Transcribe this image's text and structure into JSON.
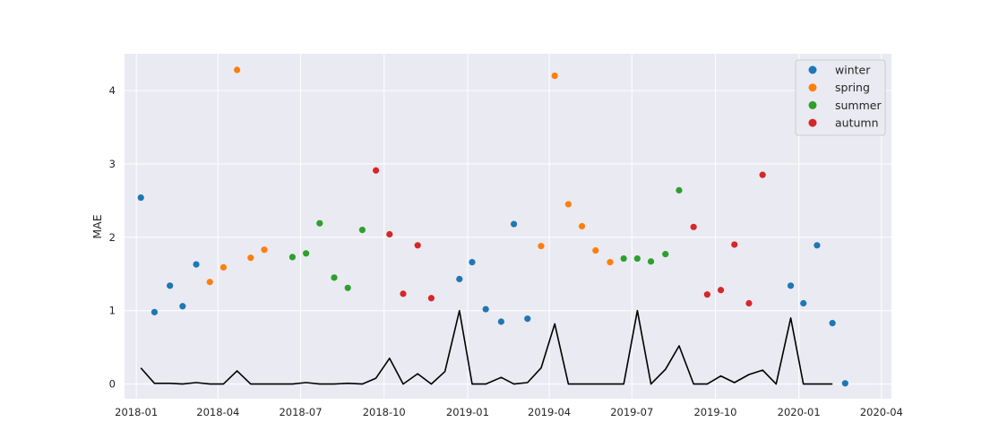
{
  "chart_data": {
    "type": "scatter",
    "xlabel": "",
    "ylabel": "MAE",
    "xlim": [
      "2017-12-19",
      "2020-04-12"
    ],
    "ylim": [
      -0.2,
      4.5
    ],
    "grid": true,
    "legend_position": "top-right",
    "background": "#eaeaf2",
    "x_ticks": [
      "2018-01",
      "2018-04",
      "2018-07",
      "2018-10",
      "2019-01",
      "2019-04",
      "2019-07",
      "2019-10",
      "2020-01",
      "2020-04"
    ],
    "y_ticks": [
      "0",
      "1",
      "2",
      "3",
      "4"
    ],
    "series": [
      {
        "name": "winter",
        "color": "#1f77b4",
        "points": [
          [
            "2018-01-06",
            2.54
          ],
          [
            "2018-01-21",
            0.98
          ],
          [
            "2018-02-07",
            1.34
          ],
          [
            "2018-02-21",
            1.06
          ],
          [
            "2018-03-08",
            1.63
          ],
          [
            "2018-12-23",
            1.43
          ],
          [
            "2019-01-06",
            1.66
          ],
          [
            "2019-01-21",
            1.02
          ],
          [
            "2019-02-07",
            0.85
          ],
          [
            "2019-02-21",
            2.18
          ],
          [
            "2019-03-08",
            0.89
          ],
          [
            "2019-12-23",
            1.34
          ],
          [
            "2020-01-06",
            1.1
          ],
          [
            "2020-01-21",
            1.89
          ],
          [
            "2020-02-07",
            0.83
          ],
          [
            "2020-02-21",
            0.01
          ]
        ]
      },
      {
        "name": "spring",
        "color": "#ff7f0e",
        "points": [
          [
            "2018-03-23",
            1.39
          ],
          [
            "2018-04-07",
            1.59
          ],
          [
            "2018-04-22",
            4.28
          ],
          [
            "2018-05-07",
            1.72
          ],
          [
            "2018-05-22",
            1.83
          ],
          [
            "2019-03-23",
            1.88
          ],
          [
            "2019-04-07",
            4.2
          ],
          [
            "2019-04-22",
            2.45
          ],
          [
            "2019-05-07",
            2.15
          ],
          [
            "2019-05-22",
            1.82
          ],
          [
            "2019-06-07",
            1.66
          ]
        ]
      },
      {
        "name": "summer",
        "color": "#2ca02c",
        "points": [
          [
            "2018-06-22",
            1.73
          ],
          [
            "2018-07-07",
            1.78
          ],
          [
            "2018-07-22",
            2.19
          ],
          [
            "2018-08-07",
            1.45
          ],
          [
            "2018-08-22",
            1.31
          ],
          [
            "2018-09-07",
            2.1
          ],
          [
            "2019-06-22",
            1.71
          ],
          [
            "2019-07-07",
            1.71
          ],
          [
            "2019-07-22",
            1.67
          ],
          [
            "2019-08-07",
            1.77
          ],
          [
            "2019-08-22",
            2.64
          ]
        ]
      },
      {
        "name": "autumn",
        "color": "#d62728",
        "points": [
          [
            "2018-09-22",
            2.91
          ],
          [
            "2018-10-07",
            2.04
          ],
          [
            "2018-10-22",
            1.23
          ],
          [
            "2018-11-07",
            1.89
          ],
          [
            "2018-11-22",
            1.17
          ],
          [
            "2019-09-07",
            2.14
          ],
          [
            "2019-09-22",
            1.22
          ],
          [
            "2019-10-07",
            1.28
          ],
          [
            "2019-10-22",
            1.9
          ],
          [
            "2019-11-07",
            1.1
          ],
          [
            "2019-11-22",
            2.85
          ]
        ]
      }
    ],
    "line": {
      "color": "#000000",
      "points": [
        [
          "2018-01-06",
          0.22
        ],
        [
          "2018-01-21",
          0.01
        ],
        [
          "2018-02-07",
          0.01
        ],
        [
          "2018-02-21",
          0.0
        ],
        [
          "2018-03-08",
          0.02
        ],
        [
          "2018-03-23",
          0.0
        ],
        [
          "2018-04-07",
          0.0
        ],
        [
          "2018-04-22",
          0.18
        ],
        [
          "2018-05-07",
          0.0
        ],
        [
          "2018-05-22",
          0.0
        ],
        [
          "2018-06-07",
          0.0
        ],
        [
          "2018-06-22",
          0.0
        ],
        [
          "2018-07-07",
          0.02
        ],
        [
          "2018-07-22",
          0.0
        ],
        [
          "2018-08-07",
          0.0
        ],
        [
          "2018-08-22",
          0.01
        ],
        [
          "2018-09-07",
          0.0
        ],
        [
          "2018-09-22",
          0.08
        ],
        [
          "2018-10-07",
          0.35
        ],
        [
          "2018-10-22",
          0.0
        ],
        [
          "2018-11-07",
          0.14
        ],
        [
          "2018-11-22",
          0.0
        ],
        [
          "2018-12-07",
          0.17
        ],
        [
          "2018-12-23",
          1.0
        ],
        [
          "2019-01-06",
          0.0
        ],
        [
          "2019-01-21",
          0.0
        ],
        [
          "2019-02-07",
          0.09
        ],
        [
          "2019-02-21",
          0.0
        ],
        [
          "2019-03-08",
          0.02
        ],
        [
          "2019-03-23",
          0.22
        ],
        [
          "2019-04-07",
          0.82
        ],
        [
          "2019-04-22",
          0.0
        ],
        [
          "2019-05-07",
          0.0
        ],
        [
          "2019-05-22",
          0.0
        ],
        [
          "2019-06-07",
          0.0
        ],
        [
          "2019-06-22",
          0.0
        ],
        [
          "2019-07-07",
          1.0
        ],
        [
          "2019-07-22",
          0.0
        ],
        [
          "2019-08-07",
          0.2
        ],
        [
          "2019-08-22",
          0.52
        ],
        [
          "2019-09-07",
          0.0
        ],
        [
          "2019-09-22",
          0.0
        ],
        [
          "2019-10-07",
          0.11
        ],
        [
          "2019-10-22",
          0.02
        ],
        [
          "2019-11-07",
          0.13
        ],
        [
          "2019-11-22",
          0.19
        ],
        [
          "2019-12-07",
          0.0
        ],
        [
          "2019-12-23",
          0.9
        ],
        [
          "2020-01-06",
          0.0
        ],
        [
          "2020-01-21",
          0.0
        ],
        [
          "2020-02-07",
          0.0
        ]
      ]
    }
  }
}
